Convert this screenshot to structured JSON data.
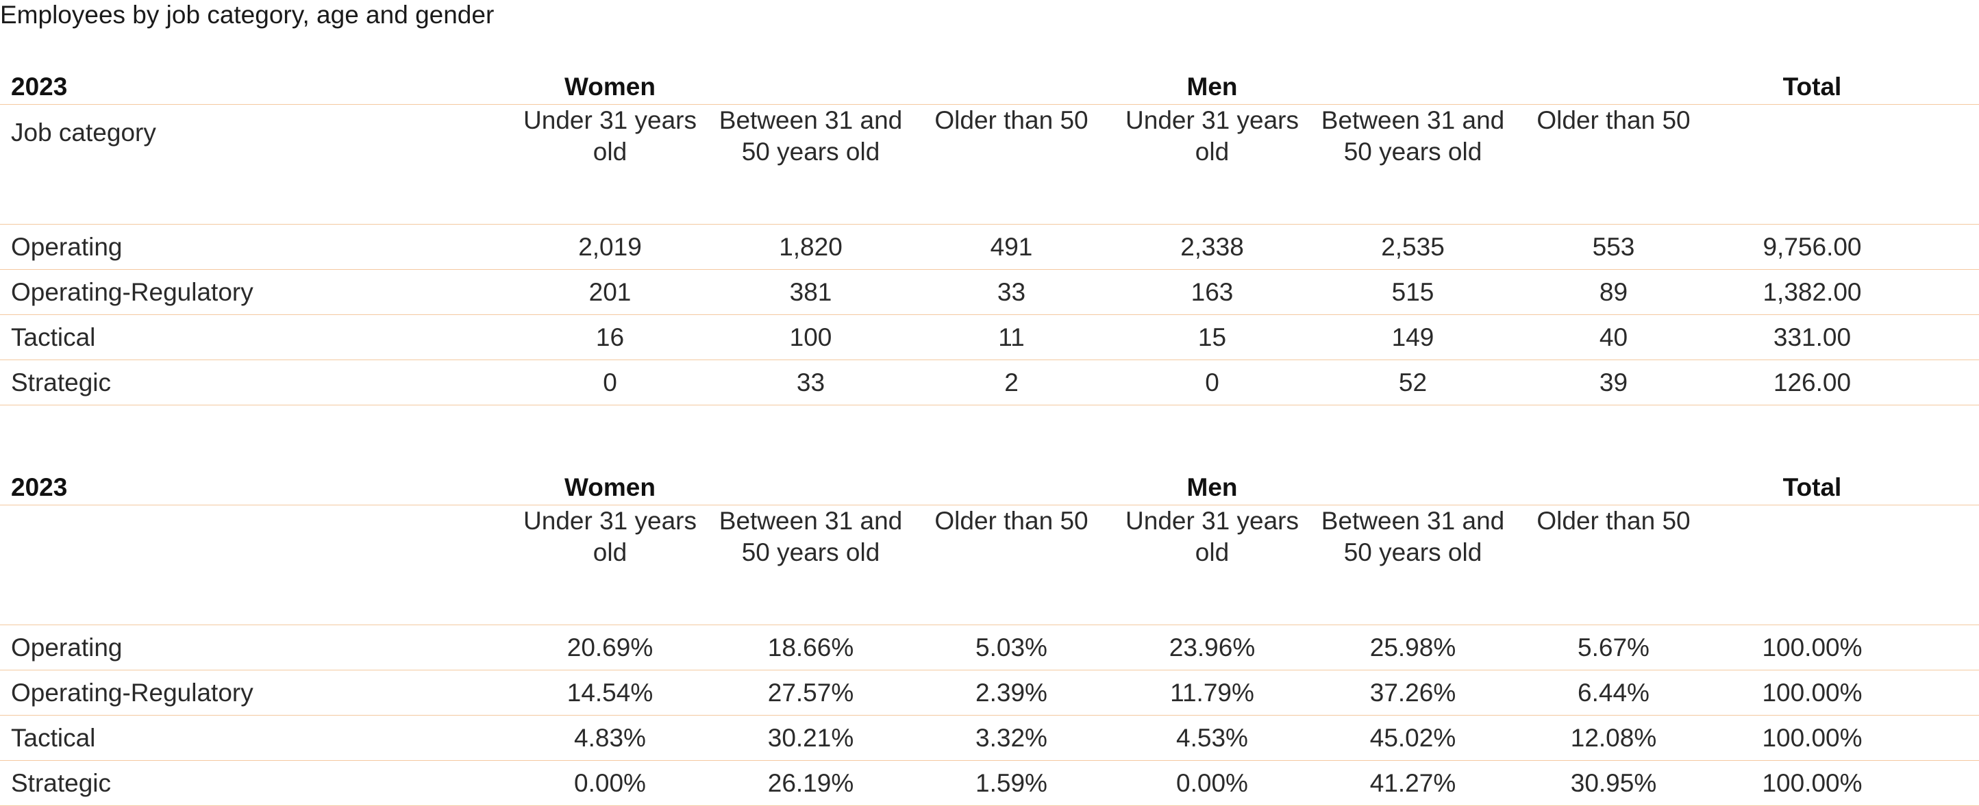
{
  "title": "Employees by job category, age and gender",
  "tables": [
    {
      "year": "2023",
      "women_label": "Women",
      "men_label": "Men",
      "total_label": "Total",
      "label_header": "Job category",
      "age_groups": [
        "Under 31 years old",
        "Between 31 and 50 years old",
        "Older than 50"
      ],
      "rows": [
        {
          "category": "Operating",
          "women": [
            "2,019",
            "1,820",
            "491"
          ],
          "men": [
            "2,338",
            "2,535",
            "553"
          ],
          "total": "9,756.00"
        },
        {
          "category": "Operating-Regulatory",
          "women": [
            "201",
            "381",
            "33"
          ],
          "men": [
            "163",
            "515",
            "89"
          ],
          "total": "1,382.00"
        },
        {
          "category": "Tactical",
          "women": [
            "16",
            "100",
            "11"
          ],
          "men": [
            "15",
            "149",
            "40"
          ],
          "total": "331.00"
        },
        {
          "category": "Strategic",
          "women": [
            "0",
            "33",
            "2"
          ],
          "men": [
            "0",
            "52",
            "39"
          ],
          "total": "126.00"
        }
      ]
    },
    {
      "year": "2023",
      "women_label": "Women",
      "men_label": "Men",
      "total_label": "Total",
      "label_header": "",
      "age_groups": [
        "Under 31 years old",
        "Between 31 and 50 years old",
        "Older than 50"
      ],
      "rows": [
        {
          "category": "Operating",
          "women": [
            "20.69%",
            "18.66%",
            "5.03%"
          ],
          "men": [
            "23.96%",
            "25.98%",
            "5.67%"
          ],
          "total": "100.00%"
        },
        {
          "category": "Operating-Regulatory",
          "women": [
            "14.54%",
            "27.57%",
            "2.39%"
          ],
          "men": [
            "11.79%",
            "37.26%",
            "6.44%"
          ],
          "total": "100.00%"
        },
        {
          "category": "Tactical",
          "women": [
            "4.83%",
            "30.21%",
            "3.32%"
          ],
          "men": [
            "4.53%",
            "45.02%",
            "12.08%"
          ],
          "total": "100.00%"
        },
        {
          "category": "Strategic",
          "women": [
            "0.00%",
            "26.19%",
            "1.59%"
          ],
          "men": [
            "0.00%",
            "41.27%",
            "30.95%"
          ],
          "total": "100.00%"
        }
      ]
    }
  ]
}
